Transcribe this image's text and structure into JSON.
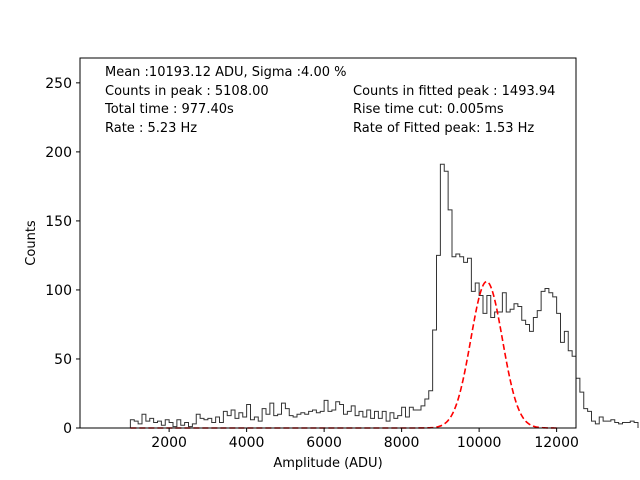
{
  "chart_data": {
    "type": "line",
    "xlabel": "Amplitude (ADU)",
    "ylabel": "Counts",
    "xlim": [
      -300,
      12500
    ],
    "ylim": [
      0,
      268
    ],
    "grid": false,
    "legend": "none",
    "xticks": [
      2000,
      4000,
      6000,
      8000,
      10000,
      12000
    ],
    "yticks": [
      0,
      50,
      100,
      150,
      200,
      250
    ],
    "annotations": {
      "left": [
        "Mean :10193.12 ADU, Sigma :4.00 %",
        "Counts in peak : 5108.00",
        "Total time : 977.40s",
        "Rate : 5.23 Hz"
      ],
      "right": [
        "Counts in fitted peak : 1493.94",
        "Rise time cut: 0.005ms",
        "Rate of Fitted peak: 1.53 Hz"
      ]
    },
    "series": [
      {
        "kind": "histogram",
        "color": "#333333",
        "bin_start": 1000,
        "bin_width": 100,
        "counts": [
          6,
          5,
          3,
          10,
          5,
          7,
          4,
          5,
          2,
          6,
          4,
          1,
          6,
          2,
          4,
          1,
          3,
          10,
          7,
          6,
          7,
          4,
          8,
          4,
          12,
          9,
          13,
          7,
          11,
          8,
          17,
          6,
          8,
          5,
          14,
          10,
          18,
          9,
          10,
          18,
          14,
          9,
          8,
          10,
          11,
          10,
          12,
          13,
          11,
          12,
          20,
          12,
          13,
          19,
          17,
          10,
          12,
          16,
          9,
          12,
          8,
          13,
          7,
          12,
          7,
          12,
          5,
          11,
          7,
          9,
          15,
          8,
          15,
          13,
          13,
          16,
          21,
          27,
          71,
          125,
          191,
          186,
          158,
          124,
          126,
          124,
          120,
          123,
          99,
          105,
          96,
          83,
          96,
          80,
          84,
          84,
          98,
          84,
          86,
          90,
          88,
          78,
          75,
          70,
          80,
          85,
          99,
          101,
          98,
          95,
          83,
          62,
          70,
          56,
          52,
          36,
          26,
          14,
          12,
          5,
          3,
          8,
          5,
          5,
          6,
          4,
          3,
          4,
          4,
          5,
          4
        ],
        "fill": false
      },
      {
        "kind": "gaussian_fit",
        "color": "#ff0000",
        "dashed": true,
        "amplitude": 106,
        "mean": 10193.12,
        "sigma": 407.7,
        "x_range": [
          1000,
          12000
        ]
      }
    ]
  }
}
